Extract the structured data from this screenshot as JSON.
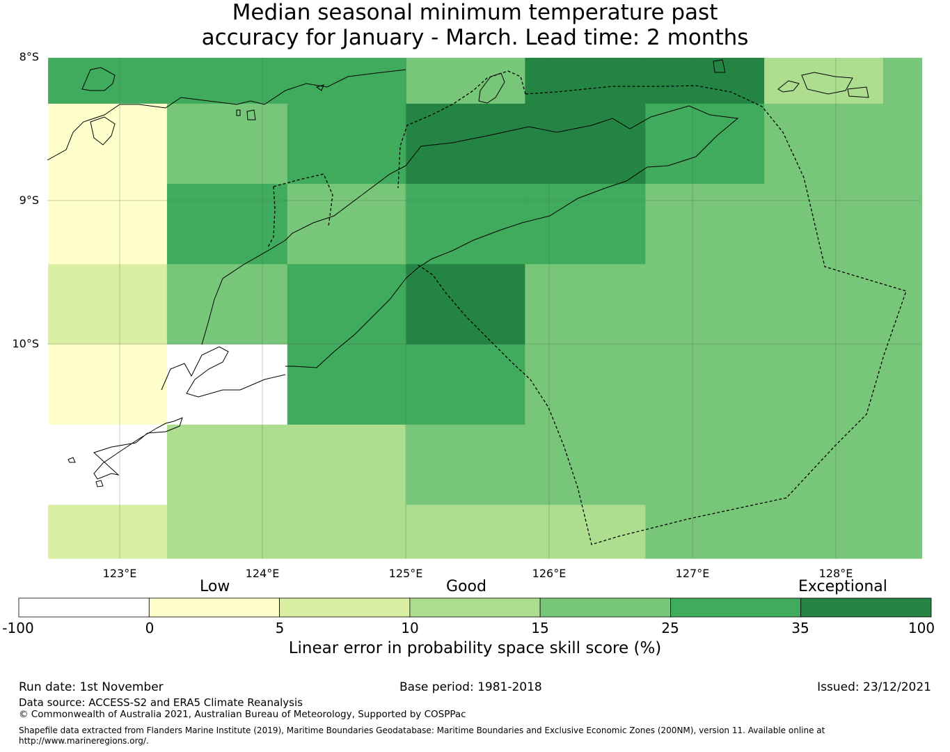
{
  "title": {
    "line1": "Median seasonal minimum temperature past",
    "line2": "accuracy for January - March. Lead time: 2 months"
  },
  "map": {
    "lat_labels": [
      "8°S",
      "9°S",
      "10°S"
    ],
    "lon_labels": [
      "123°E",
      "124°E",
      "125°E",
      "126°E",
      "127°E",
      "128°E"
    ],
    "bin_colors": [
      "#ffffff",
      "#ffffcc",
      "#d9f0a3",
      "#addd8e",
      "#78c679",
      "#41ab5d",
      "#238443"
    ],
    "grid_lon_edges": [
      122.5,
      123.33,
      124.17,
      125.0,
      125.83,
      126.67,
      127.5,
      128.33,
      128.6
    ],
    "grid_lat_edges": [
      -7.98,
      -8.32,
      -8.88,
      -9.44,
      -10.0,
      -10.56,
      -11.12,
      -11.5
    ],
    "grid_bins": [
      [
        5,
        5,
        5,
        4,
        6,
        6,
        3,
        4
      ],
      [
        1,
        4,
        5,
        6,
        6,
        5,
        4,
        4
      ],
      [
        1,
        5,
        4,
        5,
        5,
        4,
        4,
        4
      ],
      [
        2,
        4,
        5,
        6,
        4,
        4,
        4,
        4
      ],
      [
        1,
        0,
        5,
        5,
        4,
        4,
        4,
        4
      ],
      [
        0,
        3,
        3,
        4,
        4,
        4,
        4,
        4
      ],
      [
        2,
        3,
        3,
        3,
        3,
        4,
        4,
        4
      ]
    ]
  },
  "colorbar": {
    "categories": [
      "Low",
      "Good",
      "Exceptional"
    ],
    "ticks": [
      "-100",
      "0",
      "5",
      "10",
      "15",
      "25",
      "35",
      "100"
    ],
    "label": "Linear error in probability space skill score (%)"
  },
  "footer": {
    "run_date": "Run date: 1st November",
    "base_period": "Base period: 1981-2018",
    "issued": "Issued: 23/12/2021",
    "data_source": "Data source: ACCESS-S2 and ERA5 Climate Reanalysis",
    "copyright": "© Commonwealth of Australia 2021, Australian Bureau of Meteorology, Supported by COSPPac",
    "shapefile_line1": "Shapefile data extracted from Flanders Marine Institute (2019), Maritime Boundaries Geodatabase: Maritime Boundaries and Exclusive Economic Zones (200NM), version 11. Available online at",
    "shapefile_line2": "http://www.marineregions.org/."
  }
}
